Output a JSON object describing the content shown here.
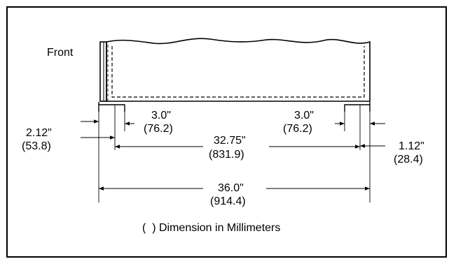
{
  "diagram": {
    "front_label": "Front",
    "dimensions": {
      "left_offset": {
        "inches": "2.12\"",
        "mm": "(53.8)"
      },
      "left_inset": {
        "inches": "3.0\"",
        "mm": "(76.2)"
      },
      "right_inset": {
        "inches": "3.0\"",
        "mm": "(76.2)"
      },
      "inner_width": {
        "inches": "32.75\"",
        "mm": "(831.9)"
      },
      "right_offset": {
        "inches": "1.12\"",
        "mm": "(28.4)"
      },
      "overall_width": {
        "inches": "36.0\"",
        "mm": "(914.4)"
      }
    },
    "legend": "(  ) Dimension in Millimeters"
  }
}
